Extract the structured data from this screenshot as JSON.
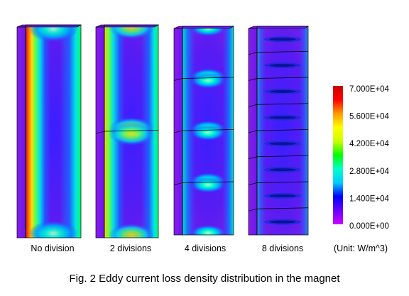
{
  "figure": {
    "caption": "Fig. 2 Eddy current loss density distribution in the magnet",
    "unit_label": "(Unit: W/m^3)",
    "panels": [
      {
        "label": "No division",
        "divisions": 1
      },
      {
        "label": "2 divisions",
        "divisions": 2
      },
      {
        "label": "4 divisions",
        "divisions": 4
      },
      {
        "label": "8 divisions",
        "divisions": 8
      }
    ]
  },
  "colorbar": {
    "ticks": [
      "7.000E+04",
      "5.600E+04",
      "4.200E+04",
      "2.800E+04",
      "1.400E+04",
      "0.000E+00"
    ],
    "colors": [
      "#cc00ff",
      "#6a00ff",
      "#0000ff",
      "#00ccff",
      "#00ffcc",
      "#00ff00",
      "#ccff00",
      "#ffff00",
      "#ff9900",
      "#ff0000",
      "#cc0000"
    ]
  }
}
